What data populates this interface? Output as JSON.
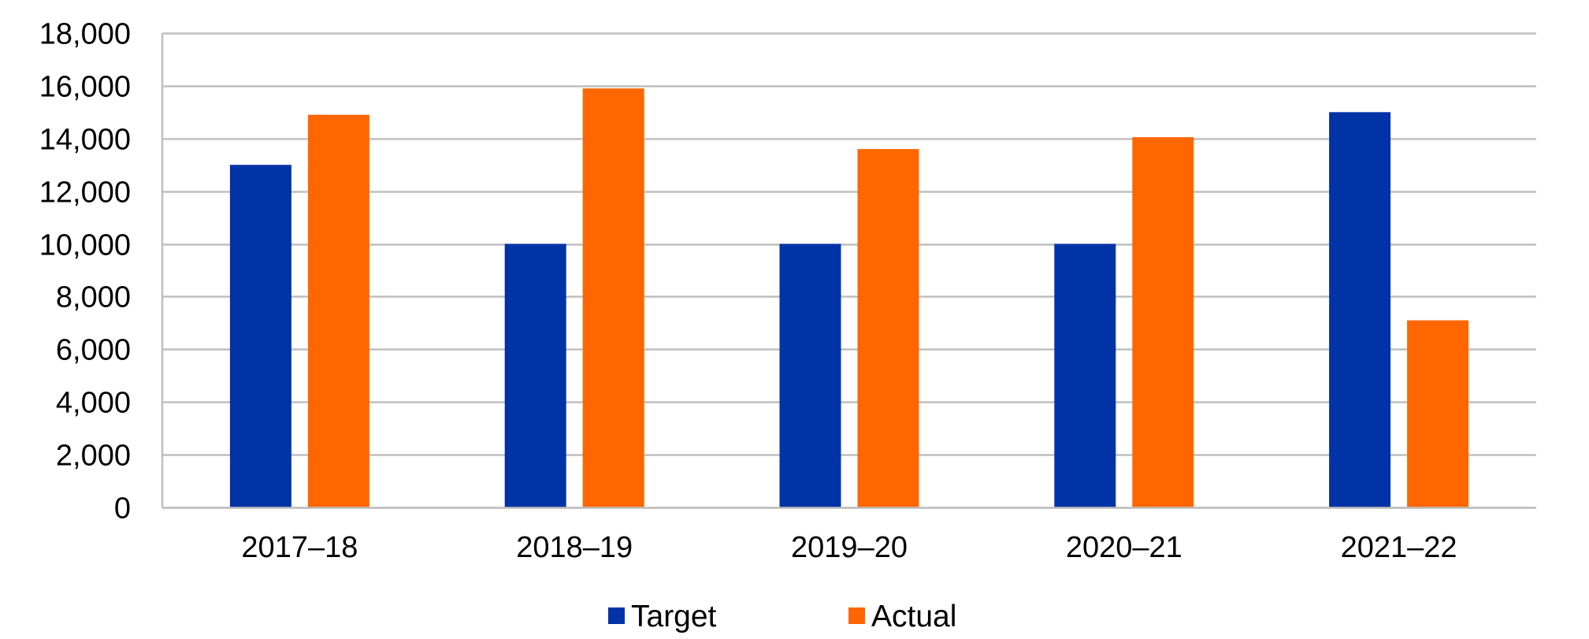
{
  "chart_data": {
    "type": "bar",
    "title": "",
    "xlabel": "",
    "ylabel": "",
    "categories": [
      "2017–18",
      "2018–19",
      "2019–20",
      "2020–21",
      "2021–22"
    ],
    "series": [
      {
        "name": "Target",
        "color": "#0033A6",
        "values": [
          13000,
          10000,
          10000,
          10000,
          15000
        ]
      },
      {
        "name": "Actual",
        "color": "#FF6600",
        "values": [
          14900,
          15900,
          13600,
          14050,
          7100
        ]
      }
    ],
    "ylim": [
      0,
      18000
    ],
    "yticks": [
      0,
      2000,
      4000,
      6000,
      8000,
      10000,
      12000,
      14000,
      16000,
      18000
    ],
    "ytick_labels": [
      "0",
      "2,000",
      "4,000",
      "6,000",
      "8,000",
      "10,000",
      "12,000",
      "14,000",
      "16,000",
      "18,000"
    ],
    "grid": true,
    "legend_position": "bottom-center",
    "gridline_color": "#BFBFBF"
  }
}
